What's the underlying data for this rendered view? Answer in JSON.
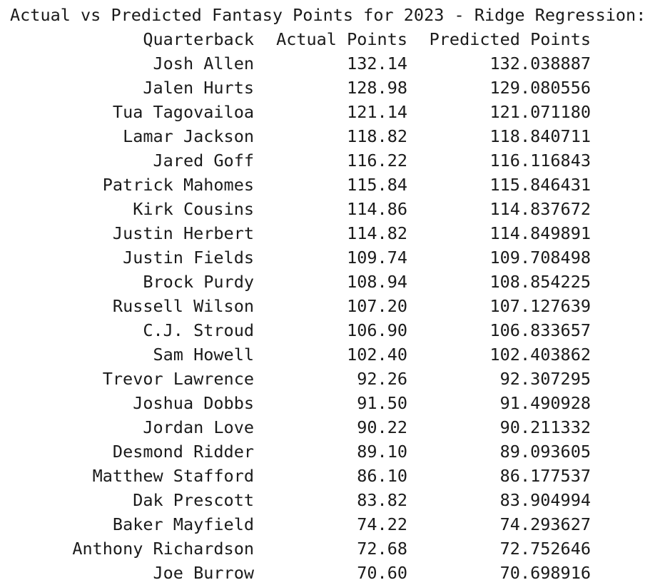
{
  "title": "Actual vs Predicted Fantasy Points for 2023 - Ridge Regression:",
  "columns": {
    "name": "Quarterback",
    "actual": "Actual Points",
    "predicted": "Predicted Points"
  },
  "rows": [
    {
      "name": "Josh Allen",
      "actual": "132.14",
      "predicted": "132.038887"
    },
    {
      "name": "Jalen Hurts",
      "actual": "128.98",
      "predicted": "129.080556"
    },
    {
      "name": "Tua Tagovailoa",
      "actual": "121.14",
      "predicted": "121.071180"
    },
    {
      "name": "Lamar Jackson",
      "actual": "118.82",
      "predicted": "118.840711"
    },
    {
      "name": "Jared Goff",
      "actual": "116.22",
      "predicted": "116.116843"
    },
    {
      "name": "Patrick Mahomes",
      "actual": "115.84",
      "predicted": "115.846431"
    },
    {
      "name": "Kirk Cousins",
      "actual": "114.86",
      "predicted": "114.837672"
    },
    {
      "name": "Justin Herbert",
      "actual": "114.82",
      "predicted": "114.849891"
    },
    {
      "name": "Justin Fields",
      "actual": "109.74",
      "predicted": "109.708498"
    },
    {
      "name": "Brock Purdy",
      "actual": "108.94",
      "predicted": "108.854225"
    },
    {
      "name": "Russell Wilson",
      "actual": "107.20",
      "predicted": "107.127639"
    },
    {
      "name": "C.J. Stroud",
      "actual": "106.90",
      "predicted": "106.833657"
    },
    {
      "name": "Sam Howell",
      "actual": "102.40",
      "predicted": "102.403862"
    },
    {
      "name": "Trevor Lawrence",
      "actual": "92.26",
      "predicted": "92.307295"
    },
    {
      "name": "Joshua Dobbs",
      "actual": "91.50",
      "predicted": "91.490928"
    },
    {
      "name": "Jordan Love",
      "actual": "90.22",
      "predicted": "90.211332"
    },
    {
      "name": "Desmond Ridder",
      "actual": "89.10",
      "predicted": "89.093605"
    },
    {
      "name": "Matthew Stafford",
      "actual": "86.10",
      "predicted": "86.177537"
    },
    {
      "name": "Dak Prescott",
      "actual": "83.82",
      "predicted": "83.904994"
    },
    {
      "name": "Baker Mayfield",
      "actual": "74.22",
      "predicted": "74.293627"
    },
    {
      "name": "Anthony Richardson",
      "actual": "72.68",
      "predicted": "72.752646"
    },
    {
      "name": "Joe Burrow",
      "actual": "70.60",
      "predicted": "70.698916"
    }
  ]
}
